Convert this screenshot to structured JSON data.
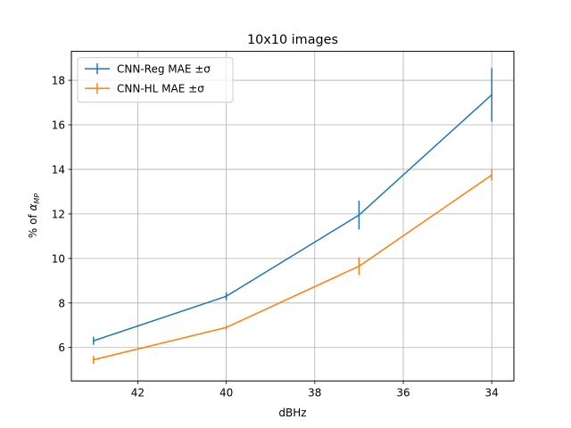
{
  "chart_data": {
    "type": "line",
    "title": "10x10 images",
    "xlabel": "dBHz",
    "ylabel_prefix": "% of ",
    "ylabel_symbol": "α",
    "ylabel_subscript": "MP",
    "x": [
      43,
      40,
      37,
      34
    ],
    "xlim": [
      43.5,
      33.5
    ],
    "ylim": [
      4.5,
      19.3
    ],
    "xticks": [
      42,
      40,
      38,
      36,
      34
    ],
    "yticks": [
      6,
      8,
      10,
      12,
      14,
      16,
      18
    ],
    "grid": true,
    "legend_position": "top-left",
    "series": [
      {
        "name": "CNN-Reg MAE ±σ",
        "color": "#1f77b4",
        "values": [
          6.3,
          8.3,
          11.95,
          17.35
        ],
        "errors": [
          0.18,
          0.18,
          0.65,
          1.2
        ]
      },
      {
        "name": "CNN-HL MAE ±σ",
        "color": "#ff7f0e",
        "values": [
          5.45,
          6.9,
          9.65,
          13.75
        ],
        "errors": [
          0.18,
          0.1,
          0.4,
          0.25
        ]
      }
    ]
  }
}
